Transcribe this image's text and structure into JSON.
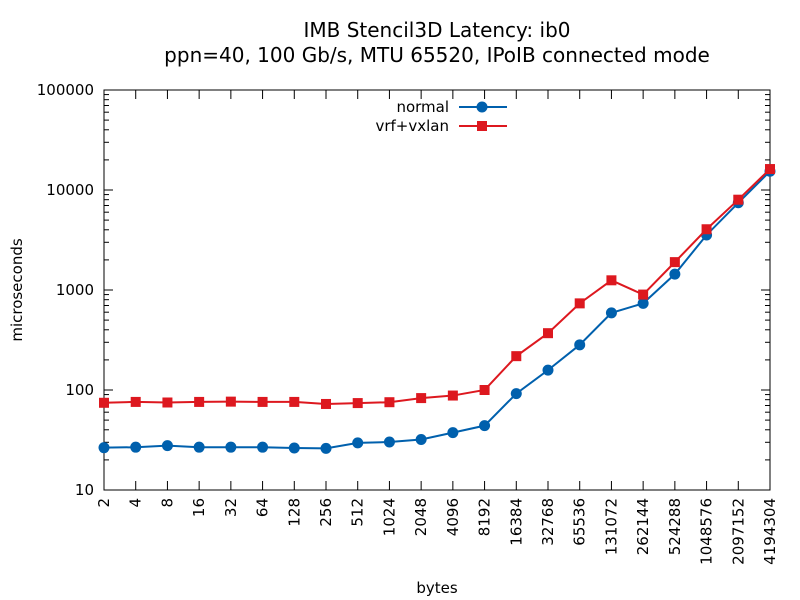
{
  "chart_data": {
    "type": "line",
    "title": "IMB Stencil3D Latency: ib0",
    "subtitle": "ppn=40, 100 Gb/s, MTU 65520, IPoIB connected mode",
    "xlabel": "bytes",
    "ylabel": "microseconds",
    "x_scale": "log2",
    "y_scale": "log10",
    "xlim": [
      2,
      4194304
    ],
    "ylim": [
      10,
      100000
    ],
    "legend_position": "top-center",
    "grid": false,
    "x_ticks": [
      "2",
      "4",
      "8",
      "16",
      "32",
      "64",
      "128",
      "256",
      "512",
      "1024",
      "2048",
      "4096",
      "8192",
      "16384",
      "32768",
      "65536",
      "131072",
      "262144",
      "524288",
      "1048576",
      "2097152",
      "4194304"
    ],
    "y_ticks": [
      "10",
      "100",
      "1000",
      "10000",
      "100000"
    ],
    "x": [
      2,
      4,
      8,
      16,
      32,
      64,
      128,
      256,
      512,
      1024,
      2048,
      4096,
      8192,
      16384,
      32768,
      65536,
      131072,
      262144,
      524288,
      1048576,
      2097152,
      4194304
    ],
    "series": [
      {
        "name": "normal",
        "color": "#0060ad",
        "marker": "circle",
        "values": [
          26.5,
          26.8,
          27.8,
          26.8,
          26.8,
          26.8,
          26.3,
          26.1,
          29.6,
          30.2,
          32.0,
          37.5,
          44.0,
          92.0,
          158.0,
          283.0,
          590.0,
          735.0,
          1440.0,
          3550.0,
          7450.0,
          15400.0
        ]
      },
      {
        "name": "vrf+vxlan",
        "color": "#dd181f",
        "marker": "square",
        "values": [
          74.5,
          76.0,
          75.0,
          76.0,
          76.5,
          76.0,
          76.0,
          72.5,
          74.0,
          75.5,
          83.0,
          88.0,
          100.0,
          218.0,
          370.0,
          735.0,
          1250.0,
          900.0,
          1900.0,
          4050.0,
          8000.0,
          16200.0
        ]
      }
    ]
  }
}
